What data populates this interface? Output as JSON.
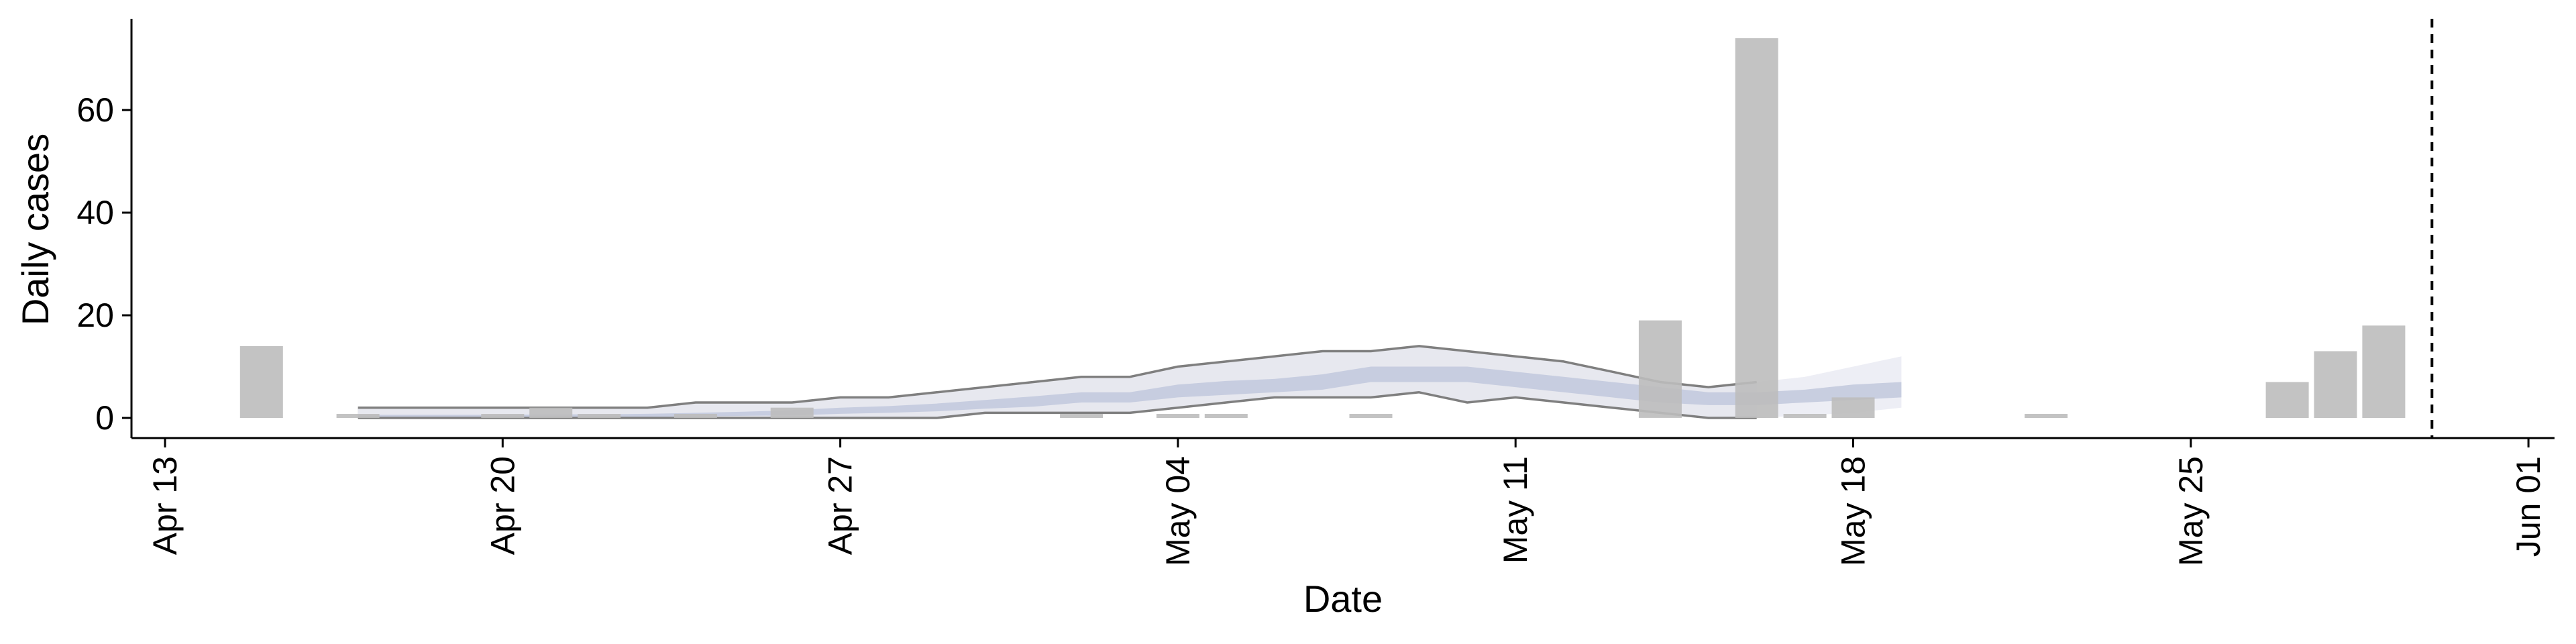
{
  "chart_data": {
    "type": "bar",
    "title": "",
    "xlabel": "Date",
    "ylabel": "Daily cases",
    "x_ticks": [
      "Apr 13",
      "Apr 20",
      "Apr 27",
      "May 04",
      "May 11",
      "May 18",
      "May 25",
      "Jun 01"
    ],
    "y_ticks": [
      "0",
      "20",
      "40",
      "60"
    ],
    "xlim": [
      "2020-04-13",
      "2020-06-01"
    ],
    "ylim": [
      -3,
      78
    ],
    "grid": false,
    "legend": "none",
    "reference_line": {
      "date": "2020-05-30",
      "style": "dashed"
    },
    "series": [
      {
        "type": "bar",
        "color": "#bdbdbd",
        "x": [
          "2020-04-15",
          "2020-04-17",
          "2020-04-20",
          "2020-04-21",
          "2020-04-22",
          "2020-04-24",
          "2020-04-26",
          "2020-05-02",
          "2020-05-04",
          "2020-05-05",
          "2020-05-08",
          "2020-05-14",
          "2020-05-16",
          "2020-05-17",
          "2020-05-18",
          "2020-05-22",
          "2020-05-27",
          "2020-05-28",
          "2020-05-29"
        ],
        "values": [
          14,
          0.4,
          0.4,
          2,
          0.4,
          0.4,
          2,
          0.4,
          0.4,
          0.4,
          0.4,
          19,
          74,
          0.4,
          4,
          0.4,
          7,
          13,
          18
        ]
      },
      {
        "type": "band",
        "color": "#7f7f7f",
        "x": [
          "2020-04-17",
          "2020-04-18",
          "2020-04-19",
          "2020-04-20",
          "2020-04-21",
          "2020-04-22",
          "2020-04-23",
          "2020-04-24",
          "2020-04-25",
          "2020-04-26",
          "2020-04-27",
          "2020-04-28",
          "2020-04-29",
          "2020-04-30",
          "2020-05-01",
          "2020-05-02",
          "2020-05-03",
          "2020-05-04",
          "2020-05-05",
          "2020-05-06",
          "2020-05-07",
          "2020-05-08",
          "2020-05-09",
          "2020-05-10",
          "2020-05-11",
          "2020-05-12",
          "2020-05-13",
          "2020-05-14",
          "2020-05-15",
          "2020-05-16"
        ],
        "upper": [
          2,
          2,
          2,
          2,
          2,
          2,
          2,
          3,
          3,
          3,
          4,
          4,
          5,
          6,
          7,
          8,
          8,
          10,
          11,
          12,
          13,
          13,
          14,
          13,
          12,
          11,
          9,
          7,
          6,
          7
        ],
        "lower": [
          0,
          0,
          0,
          0,
          0,
          0,
          0,
          0,
          0,
          0,
          0,
          0,
          0,
          1,
          1,
          1,
          1,
          2,
          3,
          4,
          4,
          4,
          5,
          3,
          4,
          3,
          2,
          1,
          0,
          0
        ]
      },
      {
        "type": "band",
        "color": "#ecedf4",
        "x": [
          "2020-04-17",
          "2020-04-18",
          "2020-04-19",
          "2020-04-20",
          "2020-04-21",
          "2020-04-22",
          "2020-04-23",
          "2020-04-24",
          "2020-04-25",
          "2020-04-26",
          "2020-04-27",
          "2020-04-28",
          "2020-04-29",
          "2020-04-30",
          "2020-05-01",
          "2020-05-02",
          "2020-05-03",
          "2020-05-04",
          "2020-05-05",
          "2020-05-06",
          "2020-05-07",
          "2020-05-08",
          "2020-05-09",
          "2020-05-10",
          "2020-05-11",
          "2020-05-12",
          "2020-05-13",
          "2020-05-14",
          "2020-05-15",
          "2020-05-16",
          "2020-05-17",
          "2020-05-18",
          "2020-05-19"
        ],
        "upper": [
          2,
          2,
          2,
          2,
          2,
          2,
          2,
          3,
          3,
          3,
          4,
          4,
          5,
          6,
          7,
          8,
          8,
          10,
          11,
          12,
          13,
          13,
          14,
          13,
          12,
          11,
          9,
          7,
          6,
          7,
          8,
          10,
          12
        ],
        "lower": [
          0,
          0,
          0,
          0,
          0,
          0,
          0,
          0,
          0,
          0,
          0,
          0,
          0,
          1,
          1,
          1,
          1,
          2,
          3,
          4,
          4,
          4,
          5,
          3,
          4,
          3,
          2,
          1,
          0,
          0,
          0.5,
          1,
          2
        ]
      },
      {
        "type": "band",
        "color": "#c3cade",
        "x": [
          "2020-04-17",
          "2020-04-18",
          "2020-04-19",
          "2020-04-20",
          "2020-04-21",
          "2020-04-22",
          "2020-04-23",
          "2020-04-24",
          "2020-04-25",
          "2020-04-26",
          "2020-04-27",
          "2020-04-28",
          "2020-04-29",
          "2020-04-30",
          "2020-05-01",
          "2020-05-02",
          "2020-05-03",
          "2020-05-04",
          "2020-05-05",
          "2020-05-06",
          "2020-05-07",
          "2020-05-08",
          "2020-05-09",
          "2020-05-10",
          "2020-05-11",
          "2020-05-12",
          "2020-05-13",
          "2020-05-14",
          "2020-05-15",
          "2020-05-16",
          "2020-05-17",
          "2020-05-18",
          "2020-05-19"
        ],
        "upper": [
          0.6,
          0.6,
          0.6,
          0.6,
          0.7,
          0.7,
          0.8,
          1,
          1.2,
          1.5,
          2,
          2.3,
          2.8,
          3.5,
          4.2,
          5,
          5,
          6.5,
          7.2,
          7.6,
          8.5,
          10,
          10,
          10,
          9,
          8,
          7,
          6,
          5,
          5,
          5.5,
          6.5,
          7
        ],
        "lower": [
          0.1,
          0.1,
          0.1,
          0.1,
          0.1,
          0.1,
          0.2,
          0.3,
          0.4,
          0.5,
          0.8,
          1,
          1.3,
          1.8,
          2.2,
          3,
          3,
          4,
          4.5,
          5,
          5.5,
          7,
          7,
          7,
          6,
          5,
          4,
          3,
          2.5,
          2.5,
          3,
          3.5,
          4
        ]
      }
    ]
  }
}
